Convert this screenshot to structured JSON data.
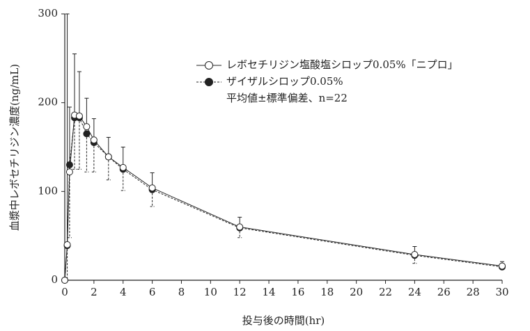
{
  "chart_data": {
    "type": "line",
    "x_label": "投与後の時間(hr)",
    "y_label": "血漿中レボセチリジン濃度(ng/mL)",
    "x": [
      0,
      0.17,
      0.33,
      0.67,
      1,
      1.5,
      2,
      3,
      4,
      6,
      12,
      24,
      30
    ],
    "xlim": [
      0,
      30
    ],
    "xticks": [
      0,
      2,
      4,
      6,
      8,
      10,
      12,
      14,
      16,
      18,
      20,
      22,
      24,
      26,
      28,
      30
    ],
    "ylim": [
      0,
      300
    ],
    "yticks": [
      0,
      100,
      200,
      300
    ],
    "series": [
      {
        "name": "レボセチリジン塩酸塩シロップ0.05%「ニプロ」",
        "color": "#222222",
        "marker": "open",
        "line_style": "solid",
        "error_direction": "up",
        "values": [
          0,
          40,
          122,
          186,
          185,
          173,
          158,
          139,
          127,
          104,
          60,
          29,
          16
        ],
        "error": [
          0,
          260,
          73,
          69,
          50,
          32,
          24,
          22,
          23,
          17,
          11,
          9,
          5
        ]
      },
      {
        "name": "ザイザルシロップ0.05%",
        "color": "#222222",
        "marker": "filled",
        "line_style": "dashed",
        "error_direction": "down",
        "values": [
          0,
          39,
          130,
          183,
          183,
          165,
          155,
          139,
          125,
          102,
          59,
          28,
          15
        ],
        "error": [
          0,
          39,
          82,
          58,
          58,
          43,
          33,
          26,
          24,
          19,
          11,
          9,
          3
        ]
      }
    ],
    "legend_note": "平均値±標準偏差、n=22"
  }
}
